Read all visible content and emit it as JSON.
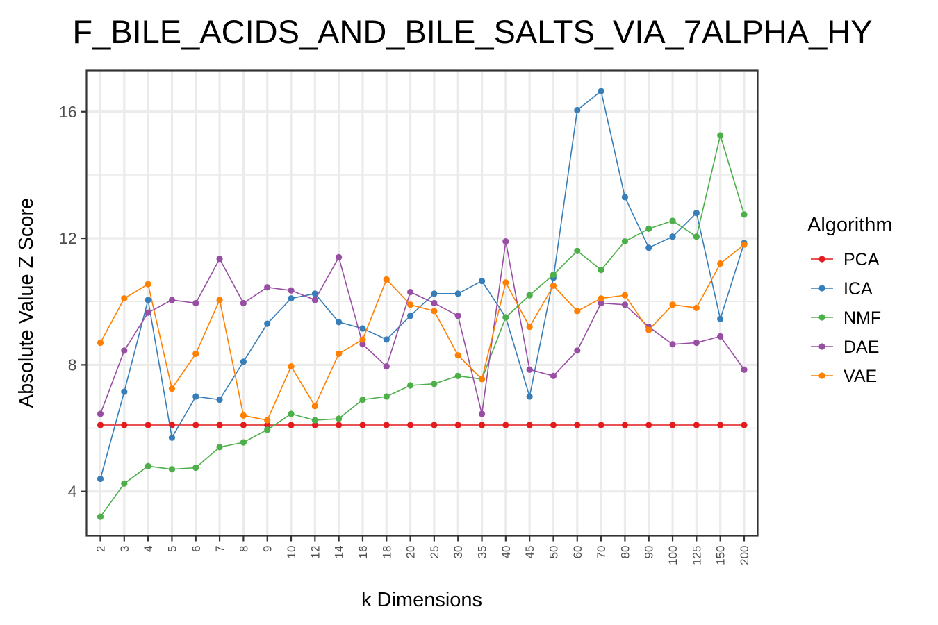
{
  "chart_data": {
    "type": "line",
    "title": "F_BILE_ACIDS_AND_BILE_SALTS_VIA_7ALPHA_HY",
    "xlabel": "k Dimensions",
    "ylabel": "Absolute Value Z Score",
    "categories": [
      "2",
      "3",
      "4",
      "5",
      "6",
      "7",
      "8",
      "9",
      "10",
      "12",
      "14",
      "16",
      "18",
      "20",
      "25",
      "30",
      "35",
      "40",
      "45",
      "50",
      "60",
      "70",
      "80",
      "90",
      "100",
      "125",
      "150",
      "200"
    ],
    "ylim": [
      2.6,
      17.3
    ],
    "yticks": [
      4,
      8,
      12,
      16
    ],
    "grid": true,
    "legend": {
      "title": "Algorithm",
      "position": "right"
    },
    "series": [
      {
        "name": "PCA",
        "color": "#e41a1c",
        "values": [
          6.1,
          6.1,
          6.1,
          6.1,
          6.1,
          6.1,
          6.1,
          6.1,
          6.1,
          6.1,
          6.1,
          6.1,
          6.1,
          6.1,
          6.1,
          6.1,
          6.1,
          6.1,
          6.1,
          6.1,
          6.1,
          6.1,
          6.1,
          6.1,
          6.1,
          6.1,
          6.1,
          6.1
        ]
      },
      {
        "name": "ICA",
        "color": "#377eb8",
        "values": [
          4.4,
          7.15,
          10.05,
          5.7,
          7.0,
          6.9,
          8.1,
          9.3,
          10.1,
          10.25,
          9.35,
          9.15,
          8.8,
          9.55,
          10.25,
          10.25,
          10.65,
          9.5,
          7.0,
          10.75,
          16.05,
          16.65,
          13.3,
          11.7,
          12.05,
          12.8,
          9.45,
          11.85
        ]
      },
      {
        "name": "NMF",
        "color": "#4daf4a",
        "values": [
          3.2,
          4.25,
          4.8,
          4.7,
          4.75,
          5.4,
          5.55,
          5.95,
          6.45,
          6.25,
          6.3,
          6.9,
          7.0,
          7.35,
          7.4,
          7.65,
          7.55,
          9.5,
          10.2,
          10.85,
          11.6,
          11.0,
          11.9,
          12.3,
          12.55,
          12.05,
          15.25,
          12.75
        ]
      },
      {
        "name": "DAE",
        "color": "#984ea3",
        "values": [
          6.45,
          8.45,
          9.65,
          10.05,
          9.95,
          11.35,
          9.95,
          10.45,
          10.35,
          10.05,
          11.4,
          8.65,
          7.95,
          10.3,
          9.95,
          9.55,
          6.45,
          11.9,
          7.85,
          7.65,
          8.45,
          9.95,
          9.9,
          9.2,
          8.65,
          8.7,
          8.9,
          7.85
        ]
      },
      {
        "name": "VAE",
        "color": "#ff7f00",
        "values": [
          8.7,
          10.1,
          10.55,
          7.25,
          8.35,
          10.05,
          6.4,
          6.25,
          7.95,
          6.7,
          8.35,
          8.8,
          10.7,
          9.9,
          9.7,
          8.3,
          7.55,
          10.6,
          9.2,
          10.5,
          9.7,
          10.1,
          10.2,
          9.1,
          9.9,
          9.8,
          11.2,
          11.8
        ]
      }
    ]
  }
}
